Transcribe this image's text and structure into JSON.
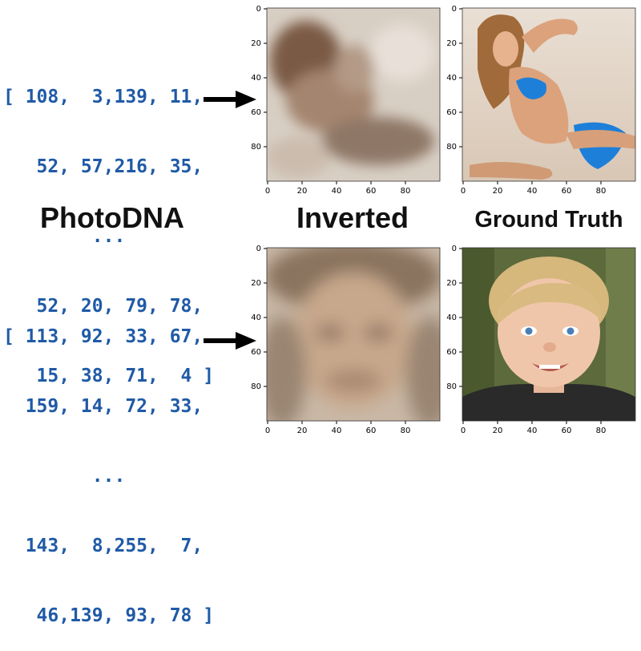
{
  "column_headings": {
    "hash": "PhotoDNA",
    "inverted": "Inverted",
    "ground_truth": "Ground Truth"
  },
  "rows": [
    {
      "hash_lines": [
        "[ 108,  3,139, 11,",
        "   52, 57,216, 35,",
        "        ...",
        "   52, 20, 79, 78,",
        "   15, 38, 71,  4 ]"
      ],
      "inverted_description": "blurry reconstruction of a reclining woman",
      "ground_truth_description": "woman in blue bikini reclining on sand"
    },
    {
      "hash_lines": [
        "[ 113, 92, 33, 67,",
        "  159, 14, 72, 33,",
        "        ...",
        "  143,  8,255,  7,",
        "   46,139, 93, 78 ]"
      ],
      "inverted_description": "blurry reconstruction of a child's face",
      "ground_truth_description": "smiling blond young boy portrait"
    }
  ],
  "axis_ticks": {
    "x": [
      "0",
      "20",
      "40",
      "60",
      "80"
    ],
    "y": [
      "0",
      "20",
      "40",
      "60",
      "80"
    ]
  },
  "icons": {
    "arrow": "right-arrow-icon"
  },
  "colors": {
    "hash_text": "#1f5aa6",
    "heading_text": "#111111"
  }
}
